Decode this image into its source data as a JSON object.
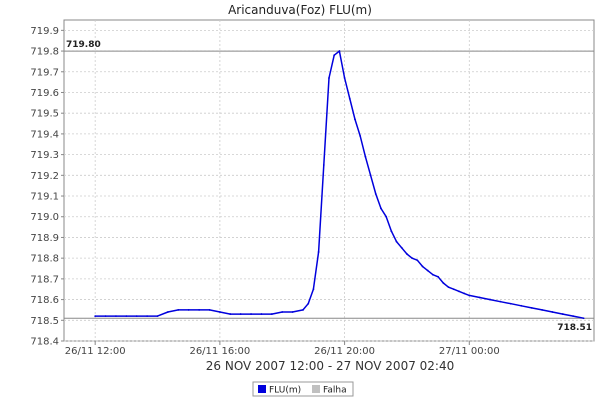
{
  "chart_data": {
    "type": "line",
    "title": "Aricanduva(Foz) FLU(m)",
    "date_range_label": "26 NOV 2007 12:00 - 27 NOV 2007 02:40",
    "x_start": "26/11 11:00",
    "x_end": "27/11 04:00",
    "x_ticks": [
      {
        "time": "26/11 12:00",
        "label": "26/11 12:00"
      },
      {
        "time": "26/11 16:00",
        "label": "26/11 16:00"
      },
      {
        "time": "26/11 20:00",
        "label": "26/11 20:00"
      },
      {
        "time": "27/11 00:00",
        "label": "27/11 00:00"
      }
    ],
    "ylim": [
      718.4,
      719.95
    ],
    "y_ticks": [
      718.4,
      718.5,
      718.6,
      718.7,
      718.8,
      718.9,
      719.0,
      719.1,
      719.2,
      719.3,
      719.4,
      719.5,
      719.6,
      719.7,
      719.8,
      719.9
    ],
    "grid": true,
    "series": [
      {
        "name": "FLU(m)",
        "color": "#0000dd",
        "points": [
          [
            "26/11 12:00",
            718.52
          ],
          [
            "26/11 12:20",
            718.52
          ],
          [
            "26/11 12:40",
            718.52
          ],
          [
            "26/11 13:00",
            718.52
          ],
          [
            "26/11 13:20",
            718.52
          ],
          [
            "26/11 13:40",
            718.52
          ],
          [
            "26/11 14:00",
            718.52
          ],
          [
            "26/11 14:20",
            718.54
          ],
          [
            "26/11 14:40",
            718.55
          ],
          [
            "26/11 15:00",
            718.55
          ],
          [
            "26/11 15:20",
            718.55
          ],
          [
            "26/11 15:40",
            718.55
          ],
          [
            "26/11 16:00",
            718.54
          ],
          [
            "26/11 16:20",
            718.53
          ],
          [
            "26/11 16:40",
            718.53
          ],
          [
            "26/11 17:00",
            718.53
          ],
          [
            "26/11 17:20",
            718.53
          ],
          [
            "26/11 17:40",
            718.53
          ],
          [
            "26/11 18:00",
            718.54
          ],
          [
            "26/11 18:20",
            718.54
          ],
          [
            "26/11 18:40",
            718.55
          ],
          [
            "26/11 18:50",
            718.58
          ],
          [
            "26/11 19:00",
            718.65
          ],
          [
            "26/11 19:10",
            718.83
          ],
          [
            "26/11 19:20",
            719.25
          ],
          [
            "26/11 19:30",
            719.67
          ],
          [
            "26/11 19:40",
            719.78
          ],
          [
            "26/11 19:50",
            719.8
          ],
          [
            "26/11 20:00",
            719.67
          ],
          [
            "26/11 20:10",
            719.57
          ],
          [
            "26/11 20:20",
            719.47
          ],
          [
            "26/11 20:30",
            719.39
          ],
          [
            "26/11 20:40",
            719.29
          ],
          [
            "26/11 20:50",
            719.2
          ],
          [
            "26/11 21:00",
            719.11
          ],
          [
            "26/11 21:10",
            719.04
          ],
          [
            "26/11 21:20",
            719.0
          ],
          [
            "26/11 21:30",
            718.93
          ],
          [
            "26/11 21:40",
            718.88
          ],
          [
            "26/11 21:50",
            718.85
          ],
          [
            "26/11 22:00",
            718.82
          ],
          [
            "26/11 22:10",
            718.8
          ],
          [
            "26/11 22:20",
            718.79
          ],
          [
            "26/11 22:30",
            718.76
          ],
          [
            "26/11 22:40",
            718.74
          ],
          [
            "26/11 22:50",
            718.72
          ],
          [
            "26/11 23:00",
            718.71
          ],
          [
            "26/11 23:10",
            718.68
          ],
          [
            "26/11 23:20",
            718.66
          ],
          [
            "26/11 23:30",
            718.65
          ],
          [
            "26/11 23:40",
            718.64
          ],
          [
            "26/11 23:50",
            718.63
          ],
          [
            "27/11 00:00",
            718.62
          ],
          [
            "27/11 00:20",
            718.61
          ],
          [
            "27/11 00:40",
            718.6
          ],
          [
            "27/11 01:00",
            718.59
          ],
          [
            "27/11 01:20",
            718.58
          ],
          [
            "27/11 01:40",
            718.57
          ],
          [
            "27/11 02:00",
            718.56
          ],
          [
            "27/11 02:20",
            718.55
          ],
          [
            "27/11 02:40",
            718.54
          ],
          [
            "27/11 03:00",
            718.53
          ],
          [
            "27/11 03:20",
            718.52
          ],
          [
            "27/11 03:40",
            718.51
          ]
        ]
      }
    ],
    "reference_lines": [
      {
        "value": 719.8,
        "label": "719.80",
        "label_side": "left",
        "color": "#888888"
      },
      {
        "value": 718.51,
        "label": "718.51",
        "label_side": "right",
        "color": "#888888"
      }
    ],
    "legend": {
      "placement": "bottom-center",
      "items": [
        {
          "label": "FLU(m)",
          "color": "#0000dd"
        },
        {
          "label": "Falha",
          "color": "#c0c0c0"
        }
      ]
    }
  }
}
